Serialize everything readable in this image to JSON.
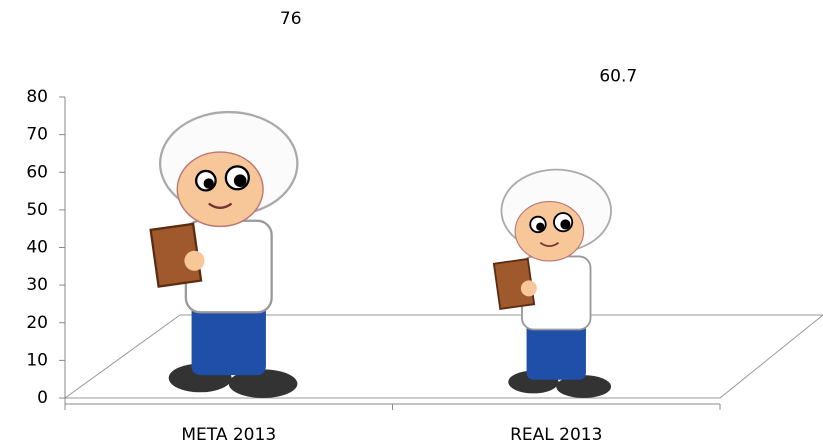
{
  "chart_data": {
    "type": "pictograph",
    "categories": [
      "META 2013",
      "REAL 2013"
    ],
    "values": [
      76,
      60.7
    ],
    "ylim": [
      0,
      80
    ],
    "yticks": [
      0,
      10,
      20,
      30,
      40,
      50,
      60,
      70,
      80
    ]
  }
}
